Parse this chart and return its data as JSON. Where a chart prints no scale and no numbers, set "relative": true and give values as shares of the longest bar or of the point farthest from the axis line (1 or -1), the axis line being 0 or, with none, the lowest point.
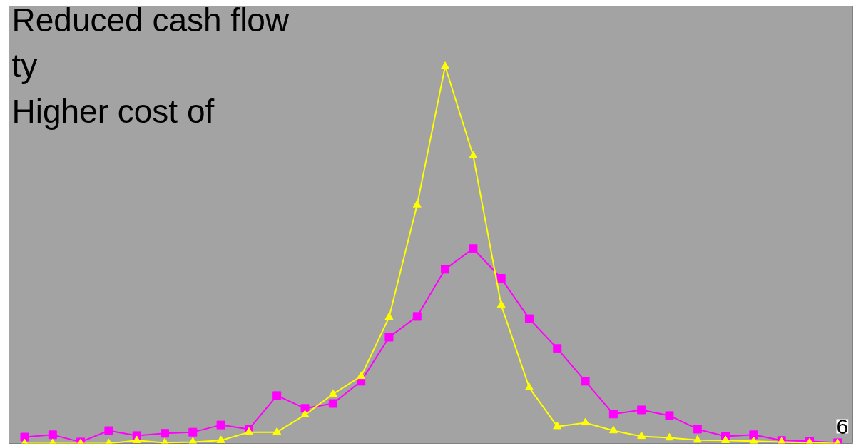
{
  "chart_data": {
    "type": "line",
    "relative": true,
    "grid": false,
    "categories": [
      null,
      null,
      null,
      null,
      null,
      null,
      null,
      null,
      null,
      null,
      null,
      null,
      null,
      null,
      null,
      null,
      null,
      null,
      null,
      null,
      null,
      null,
      null,
      null,
      null,
      null,
      null,
      null,
      null,
      null
    ],
    "series": [
      {
        "color": "#ff00ff",
        "marker": "square",
        "values": [
          0.017,
          0.023,
          0.004,
          0.034,
          0.021,
          0.027,
          0.03,
          0.049,
          0.038,
          0.127,
          0.093,
          0.106,
          0.165,
          0.282,
          0.337,
          0.462,
          0.517,
          0.438,
          0.331,
          0.252,
          0.165,
          0.078,
          0.089,
          0.074,
          0.038,
          0.019,
          0.023,
          0.008,
          0.006,
          0.002
        ]
      },
      {
        "color": "#ffff00",
        "marker": "triangle",
        "values": [
          0,
          0,
          0,
          0,
          0.008,
          0.002,
          0.004,
          0.008,
          0.03,
          0.03,
          0.076,
          0.131,
          0.178,
          0.335,
          0.633,
          1,
          0.763,
          0.367,
          0.148,
          0.045,
          0.055,
          0.034,
          0.019,
          0.015,
          0.009,
          0.008,
          0.006,
          0.004,
          0.002,
          0
        ]
      }
    ],
    "annotations": [
      "Reduced cash flow",
      "ty",
      "Higher cost of",
      "6"
    ]
  }
}
